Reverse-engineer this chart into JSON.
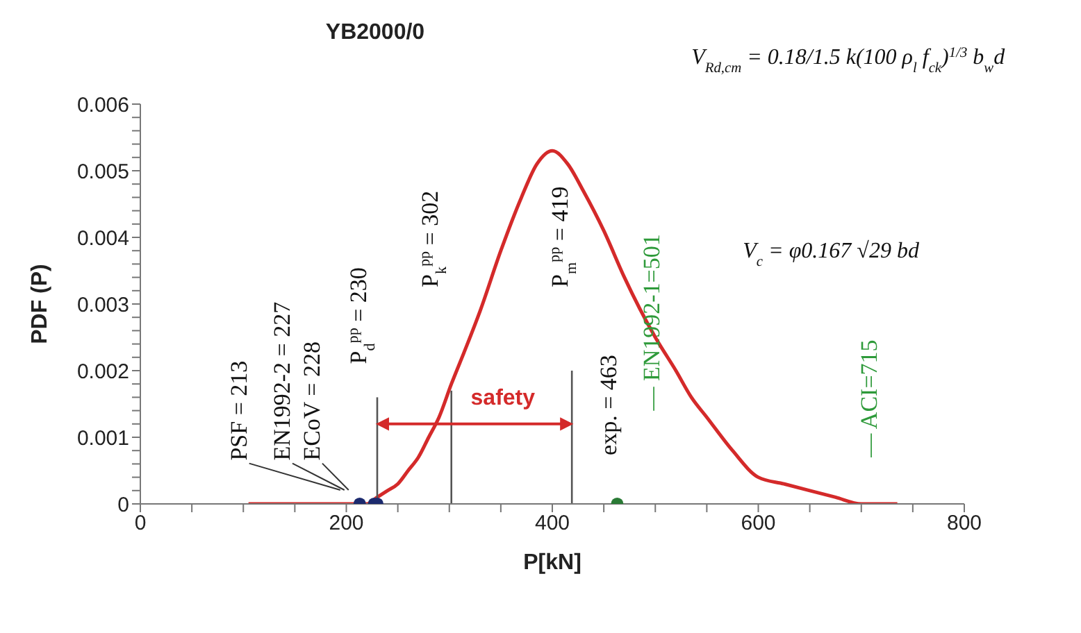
{
  "chart_data": {
    "type": "line",
    "title": "YB2000/0",
    "xlabel": "P[kN]",
    "ylabel": "PDF (P)",
    "xlim": [
      0,
      800
    ],
    "xticks": [
      0,
      {
        "value": 50,
        "label": null
      },
      {
        "value": 100,
        "label": null
      },
      {
        "value": 150,
        "label": null
      },
      200,
      {
        "value": 250,
        "label": null
      },
      {
        "value": 300,
        "label": null
      },
      {
        "value": 350,
        "label": null
      },
      400,
      {
        "value": 450,
        "label": null
      },
      {
        "value": 500,
        "label": null
      },
      {
        "value": 550,
        "label": null
      },
      600,
      {
        "value": 650,
        "label": null
      },
      {
        "value": 700,
        "label": null
      },
      {
        "value": 750,
        "label": null
      },
      800
    ],
    "ylim": [
      0,
      0.006
    ],
    "yticks": [
      0,
      {
        "value": 0.0002,
        "label": null
      },
      {
        "value": 0.0004,
        "label": null
      },
      {
        "value": 0.0006,
        "label": null
      },
      {
        "value": 0.0008,
        "label": null
      },
      0.001,
      {
        "value": 0.0012,
        "label": null
      },
      {
        "value": 0.0014,
        "label": null
      },
      {
        "value": 0.0016,
        "label": null
      },
      {
        "value": 0.0018,
        "label": null
      },
      0.002,
      {
        "value": 0.0022,
        "label": null
      },
      {
        "value": 0.0024,
        "label": null
      },
      {
        "value": 0.0026,
        "label": null
      },
      {
        "value": 0.0028,
        "label": null
      },
      0.003,
      {
        "value": 0.0032,
        "label": null
      },
      {
        "value": 0.0034,
        "label": null
      },
      {
        "value": 0.0036,
        "label": null
      },
      {
        "value": 0.0038,
        "label": null
      },
      0.004,
      {
        "value": 0.0042,
        "label": null
      },
      {
        "value": 0.0044,
        "label": null
      },
      {
        "value": 0.0046,
        "label": null
      },
      {
        "value": 0.0048,
        "label": null
      },
      0.005,
      {
        "value": 0.0052,
        "label": null
      },
      {
        "value": 0.0054,
        "label": null
      },
      {
        "value": 0.0056,
        "label": null
      },
      {
        "value": 0.0058,
        "label": null
      },
      0.006
    ],
    "series": [
      {
        "color": "#d42a2a",
        "marker": "none",
        "x": [
          105,
          150,
          200,
          220,
          230,
          240,
          250,
          260,
          270,
          280,
          290,
          302,
          315,
          330,
          350,
          370,
          385,
          400,
          415,
          430,
          450,
          470,
          500,
          520,
          535,
          550,
          575,
          600,
          625,
          650,
          675,
          700,
          735
        ],
        "values": [
          0,
          0,
          0,
          0,
          0.0001,
          0.0002,
          0.0003,
          0.0005,
          0.0007,
          0.001,
          0.0013,
          0.0018,
          0.0023,
          0.0029,
          0.0038,
          0.0046,
          0.0051,
          0.0053,
          0.0051,
          0.0047,
          0.0041,
          0.0034,
          0.0025,
          0.002,
          0.0016,
          0.0013,
          0.0008,
          0.0004,
          0.0003,
          0.0002,
          0.0001,
          0,
          0
        ]
      },
      {
        "color": "#555555",
        "marker": "none",
        "x": [
          230,
          230
        ],
        "values": [
          0,
          0.0016
        ]
      },
      {
        "color": "#555555",
        "marker": "none",
        "x": [
          302,
          302
        ],
        "values": [
          0,
          0.0017
        ]
      },
      {
        "color": "#555555",
        "marker": "none",
        "x": [
          419,
          419
        ],
        "values": [
          0,
          0.002
        ]
      },
      {
        "type": "scatter",
        "color": "#1c2a6e",
        "marker": "circle",
        "x": [
          213,
          227,
          230
        ],
        "values": [
          0,
          0,
          0
        ]
      },
      {
        "type": "scatter",
        "color": "#2a7a35",
        "marker": "circle",
        "x": [
          463
        ],
        "values": [
          0
        ]
      }
    ],
    "annotations": [
      "PSF = 213",
      "EN1992-2 = 227",
      "ECoV = 228",
      "P$_{d}$$^{pp}$ = 230",
      "P$_{k}$$^{pp}$ = 302",
      "P$_{m}$$^{pp}$ = 419",
      "exp. = 463",
      "— EN1992-1=501",
      "— ACI=715",
      "safety",
      "V$_{Rd,cm}$ = 0.18/1.5 k(100 ρ$_{l}$ f$_{ck}$)$^{1/3}$ b$_{w}$d",
      "V$_{c}$ = φ0.167 √29 bd"
    ]
  }
}
